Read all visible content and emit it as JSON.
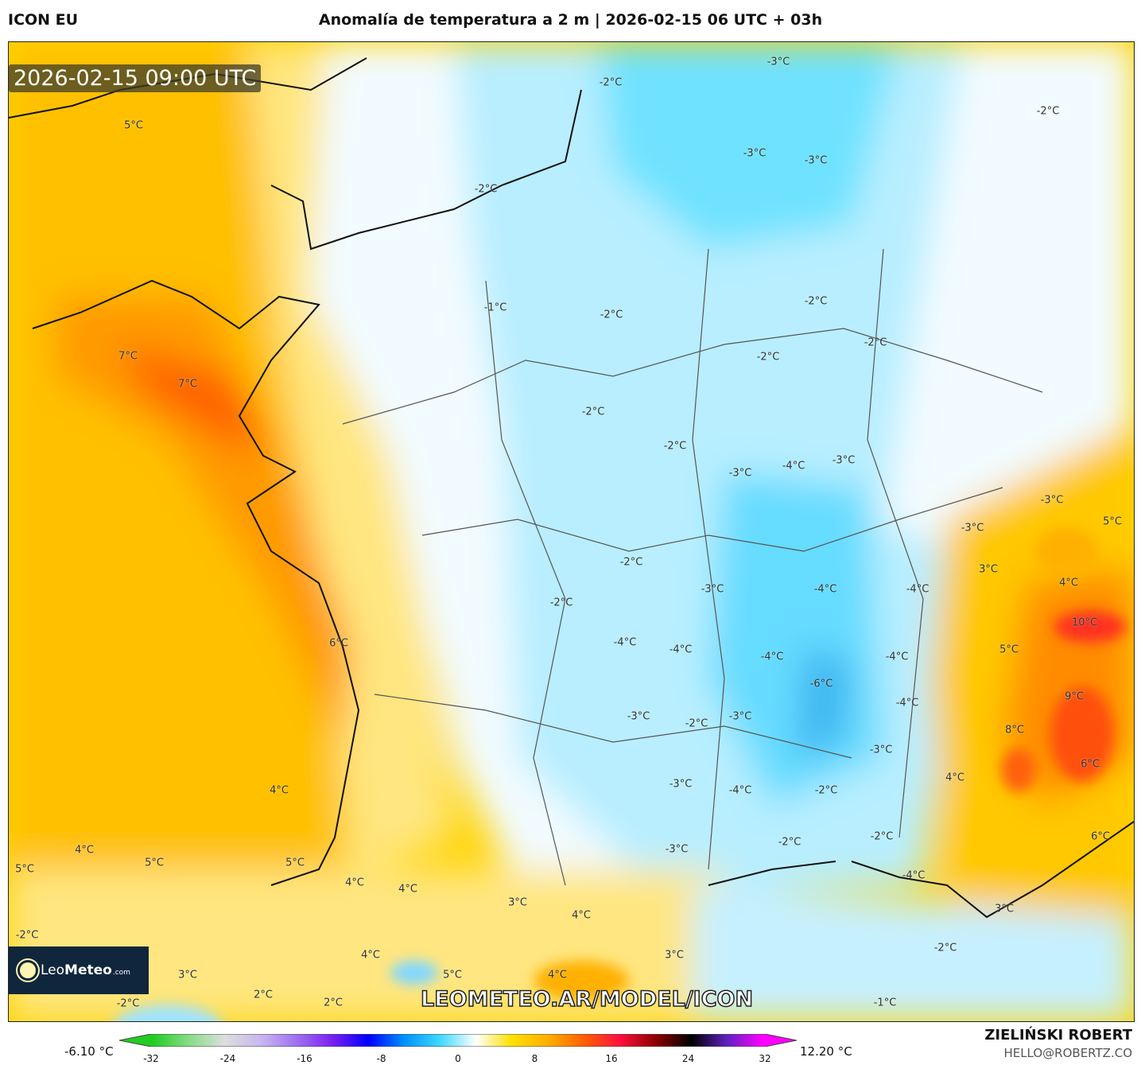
{
  "header": {
    "model": "ICON EU",
    "title": "Anomalía de temperatura a 2 m | 2026-02-15 06 UTC + 03h"
  },
  "map": {
    "timestamp": "2026-02-15 09:00 UTC",
    "watermark": "LEOMETEO.AR/MODEL/ICON",
    "logo": {
      "text_light": "Leo",
      "text_bold": "Meteo",
      "suffix": ".com"
    },
    "contour_labels": [
      "5°C",
      "-3°C",
      "-2°C",
      "-2°C",
      "-3°C",
      "-3°C",
      "-2°C",
      "-1°C",
      "-2°C",
      "-2°C",
      "-2°C",
      "-2°C",
      "7°C",
      "7°C",
      "-2°C",
      "-2°C",
      "-3°C",
      "-4°C",
      "-3°C",
      "-3°C",
      "5°C",
      "-3°C",
      "3°C",
      "4°C",
      "-2°C",
      "-3°C",
      "-4°C",
      "-4°C",
      "-2°C",
      "10°C",
      "-4°C",
      "-4°C",
      "-4°C",
      "-4°C",
      "6°C",
      "5°C",
      "-6°C",
      "9°C",
      "-4°C",
      "-3°C",
      "-2°C",
      "-3°C",
      "8°C",
      "-3°C",
      "6°C",
      "4°C",
      "4°C",
      "-3°C",
      "-4°C",
      "-2°C",
      "4°C",
      "5°C",
      "5°C",
      "5°C",
      "-3°C",
      "-2°C",
      "-2°C",
      "6°C",
      "4°C",
      "4°C",
      "-4°C",
      "3°C",
      "4°C",
      "3°C",
      "-2°C",
      "-2°C",
      "4°C",
      "3°C",
      "3°C",
      "5°C",
      "4°C",
      "2°C",
      "-2°C",
      "2°C",
      "-1°C"
    ]
  },
  "legend": {
    "min_label": "-6.10 °C",
    "max_label": "12.20 °C",
    "ticks": [
      "-32",
      "-24",
      "-16",
      "-8",
      "0",
      "8",
      "16",
      "24",
      "32"
    ],
    "colors": [
      "#22cc22",
      "#88dd88",
      "#dddddd",
      "#c8b8f0",
      "#a070f0",
      "#7a20f0",
      "#0000ff",
      "#0090ff",
      "#40d8ff",
      "#ffffff",
      "#ffe000",
      "#ffb000",
      "#ff6000",
      "#ff1040",
      "#900000",
      "#000000",
      "#6020c0",
      "#ff00ff"
    ]
  },
  "footer": {
    "author": "ZIELIŃSKI ROBERT",
    "email": "HELLO@ROBERTZ.CO"
  }
}
